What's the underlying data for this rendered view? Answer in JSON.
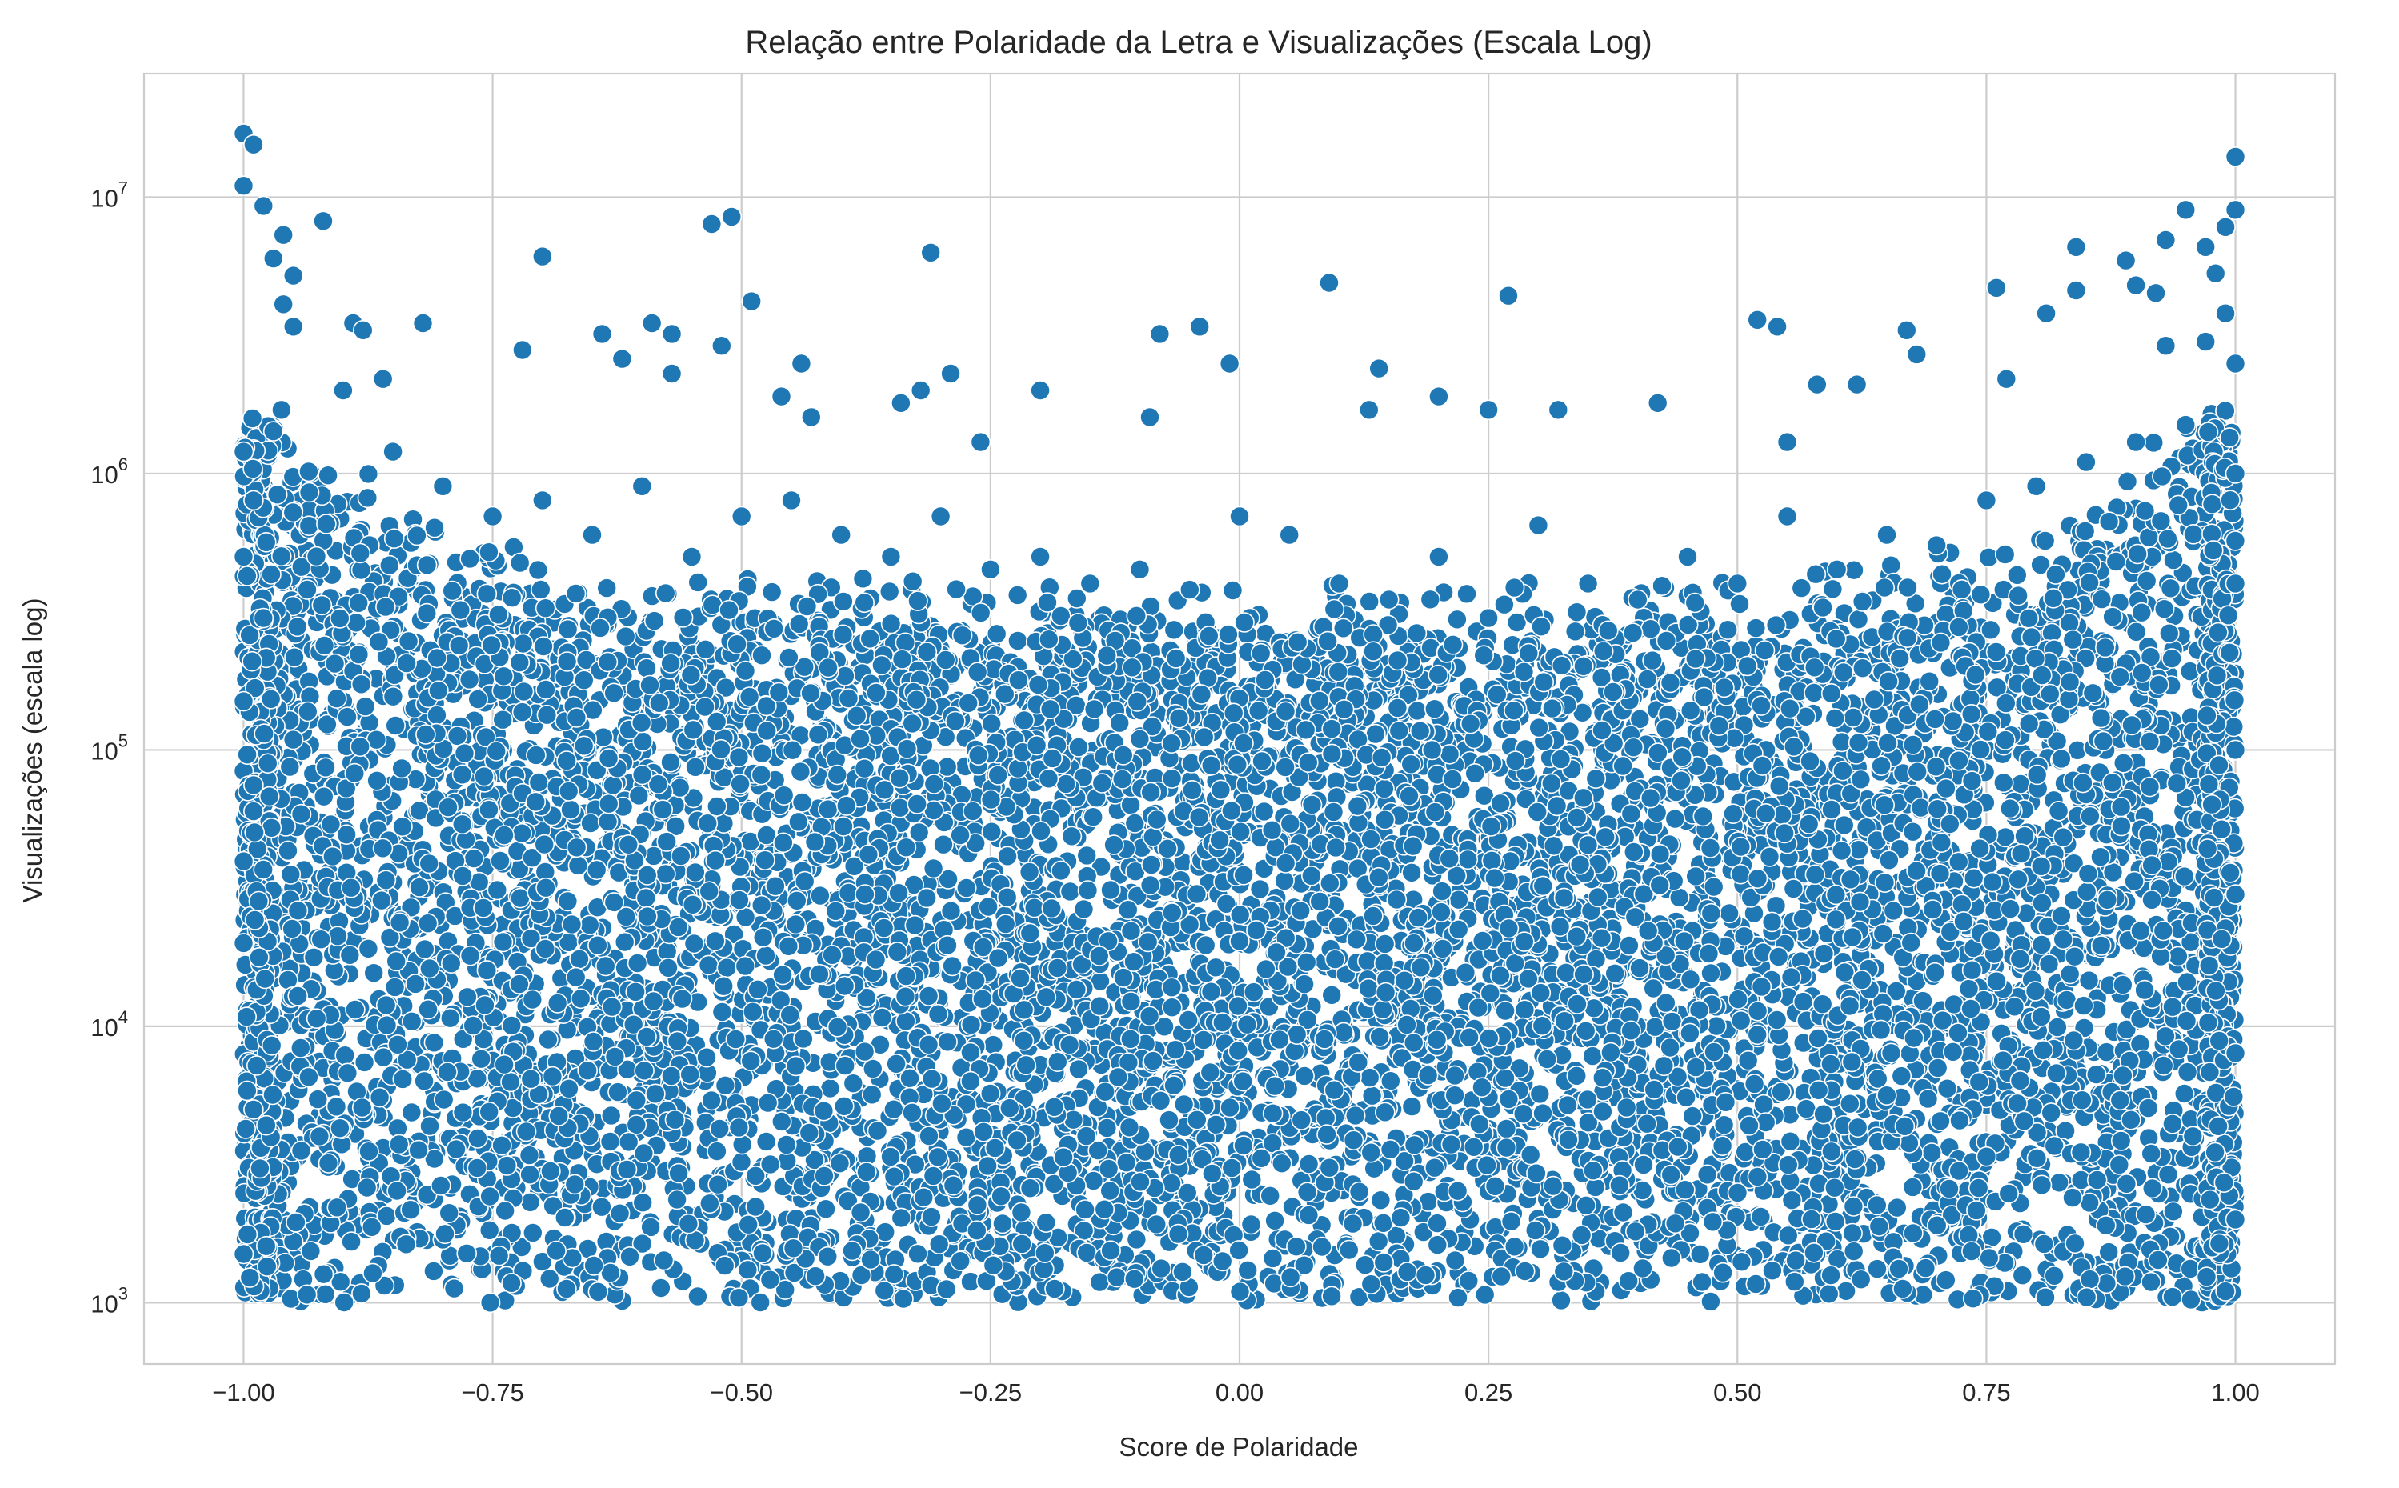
{
  "chart_data": {
    "type": "scatter",
    "title": "Relação entre Polaridade da Letra e Visualizações (Escala Log)",
    "xlabel": "Score de Polaridade",
    "ylabel": "Visualizações (escala log)",
    "xlim": [
      -1.1,
      1.1
    ],
    "ylim": [
      600,
      28000000
    ],
    "yscale": "log",
    "grid": true,
    "marker_color": "#1f77b4",
    "x_ticks": [
      {
        "value": -1.0,
        "label": "−1.00"
      },
      {
        "value": -0.75,
        "label": "−0.75"
      },
      {
        "value": -0.5,
        "label": "−0.50"
      },
      {
        "value": -0.25,
        "label": "−0.25"
      },
      {
        "value": 0.0,
        "label": "0.00"
      },
      {
        "value": 0.25,
        "label": "0.25"
      },
      {
        "value": 0.5,
        "label": "0.50"
      },
      {
        "value": 0.75,
        "label": "0.75"
      },
      {
        "value": 1.0,
        "label": "1.00"
      }
    ],
    "y_ticks": [
      {
        "value": 1000,
        "base": "10",
        "exp": "3"
      },
      {
        "value": 10000,
        "base": "10",
        "exp": "4"
      },
      {
        "value": 100000,
        "base": "10",
        "exp": "5"
      },
      {
        "value": 1000000,
        "base": "10",
        "exp": "6"
      },
      {
        "value": 10000000,
        "base": "10",
        "exp": "7"
      }
    ],
    "points": [
      {
        "x": -1.0,
        "y": 17000000
      },
      {
        "x": -0.99,
        "y": 15500000
      },
      {
        "x": -1.0,
        "y": 11000000
      },
      {
        "x": -0.98,
        "y": 9300000
      },
      {
        "x": -0.96,
        "y": 7300000
      },
      {
        "x": -0.97,
        "y": 6000000
      },
      {
        "x": -0.95,
        "y": 5200000
      },
      {
        "x": -0.96,
        "y": 4100000
      },
      {
        "x": -0.95,
        "y": 3400000
      },
      {
        "x": -0.92,
        "y": 8200000
      },
      {
        "x": -0.89,
        "y": 3500000
      },
      {
        "x": -0.88,
        "y": 3300000
      },
      {
        "x": -0.82,
        "y": 3500000
      },
      {
        "x": -0.86,
        "y": 2200000
      },
      {
        "x": -0.9,
        "y": 2000000
      },
      {
        "x": -0.7,
        "y": 6100000
      },
      {
        "x": -0.72,
        "y": 2800000
      },
      {
        "x": -0.64,
        "y": 3200000
      },
      {
        "x": -0.59,
        "y": 3500000
      },
      {
        "x": -0.57,
        "y": 3200000
      },
      {
        "x": -0.62,
        "y": 2600000
      },
      {
        "x": -0.57,
        "y": 2300000
      },
      {
        "x": -0.53,
        "y": 8000000
      },
      {
        "x": -0.51,
        "y": 8500000
      },
      {
        "x": -0.52,
        "y": 2900000
      },
      {
        "x": -0.49,
        "y": 4200000
      },
      {
        "x": -0.44,
        "y": 2500000
      },
      {
        "x": -0.46,
        "y": 1900000
      },
      {
        "x": -0.43,
        "y": 1600000
      },
      {
        "x": -0.34,
        "y": 1800000
      },
      {
        "x": -0.32,
        "y": 2000000
      },
      {
        "x": -0.31,
        "y": 6300000
      },
      {
        "x": -0.29,
        "y": 2300000
      },
      {
        "x": -0.2,
        "y": 2000000
      },
      {
        "x": -0.26,
        "y": 1300000
      },
      {
        "x": -0.08,
        "y": 3200000
      },
      {
        "x": -0.04,
        "y": 3400000
      },
      {
        "x": -0.01,
        "y": 2500000
      },
      {
        "x": -0.09,
        "y": 1600000
      },
      {
        "x": 0.09,
        "y": 4900000
      },
      {
        "x": 0.14,
        "y": 2400000
      },
      {
        "x": 0.13,
        "y": 1700000
      },
      {
        "x": 0.27,
        "y": 4400000
      },
      {
        "x": 0.2,
        "y": 1900000
      },
      {
        "x": 0.25,
        "y": 1700000
      },
      {
        "x": 0.32,
        "y": 1700000
      },
      {
        "x": 0.42,
        "y": 1800000
      },
      {
        "x": 0.52,
        "y": 3600000
      },
      {
        "x": 0.54,
        "y": 3400000
      },
      {
        "x": 0.55,
        "y": 1300000
      },
      {
        "x": 0.58,
        "y": 2100000
      },
      {
        "x": 0.62,
        "y": 2100000
      },
      {
        "x": 0.67,
        "y": 3300000
      },
      {
        "x": 0.68,
        "y": 2700000
      },
      {
        "x": 0.76,
        "y": 4700000
      },
      {
        "x": 0.77,
        "y": 2200000
      },
      {
        "x": 0.81,
        "y": 3800000
      },
      {
        "x": 0.84,
        "y": 6600000
      },
      {
        "x": 0.84,
        "y": 4600000
      },
      {
        "x": 0.89,
        "y": 5900000
      },
      {
        "x": 0.9,
        "y": 4800000
      },
      {
        "x": 0.92,
        "y": 4500000
      },
      {
        "x": 0.93,
        "y": 7000000
      },
      {
        "x": 0.95,
        "y": 9000000
      },
      {
        "x": 0.97,
        "y": 6600000
      },
      {
        "x": 0.98,
        "y": 5300000
      },
      {
        "x": 1.0,
        "y": 14000000
      },
      {
        "x": 1.0,
        "y": 9000000
      },
      {
        "x": 0.99,
        "y": 7800000
      },
      {
        "x": 0.99,
        "y": 3800000
      },
      {
        "x": 0.97,
        "y": 3000000
      },
      {
        "x": 0.93,
        "y": 2900000
      },
      {
        "x": -1.0,
        "y": 1200000
      },
      {
        "x": -0.99,
        "y": 800000
      },
      {
        "x": -1.0,
        "y": 500000
      },
      {
        "x": -0.98,
        "y": 300000
      },
      {
        "x": -1.0,
        "y": 150000
      },
      {
        "x": -0.99,
        "y": 60000
      },
      {
        "x": -1.0,
        "y": 20000
      },
      {
        "x": -0.99,
        "y": 5000
      },
      {
        "x": -1.0,
        "y": 1500
      },
      {
        "x": -0.85,
        "y": 1200000
      },
      {
        "x": -0.8,
        "y": 900000
      },
      {
        "x": -0.75,
        "y": 700000
      },
      {
        "x": -0.7,
        "y": 800000
      },
      {
        "x": -0.65,
        "y": 600000
      },
      {
        "x": -0.6,
        "y": 900000
      },
      {
        "x": -0.55,
        "y": 500000
      },
      {
        "x": -0.5,
        "y": 700000
      },
      {
        "x": -0.45,
        "y": 800000
      },
      {
        "x": -0.4,
        "y": 600000
      },
      {
        "x": -0.35,
        "y": 500000
      },
      {
        "x": -0.3,
        "y": 700000
      },
      {
        "x": -0.25,
        "y": 450000
      },
      {
        "x": -0.2,
        "y": 500000
      },
      {
        "x": -0.15,
        "y": 400000
      },
      {
        "x": -0.1,
        "y": 450000
      },
      {
        "x": -0.05,
        "y": 380000
      },
      {
        "x": 0.0,
        "y": 700000
      },
      {
        "x": 0.05,
        "y": 600000
      },
      {
        "x": 0.1,
        "y": 400000
      },
      {
        "x": 0.15,
        "y": 350000
      },
      {
        "x": 0.2,
        "y": 500000
      },
      {
        "x": 0.25,
        "y": 300000
      },
      {
        "x": 0.3,
        "y": 650000
      },
      {
        "x": 0.35,
        "y": 400000
      },
      {
        "x": 0.4,
        "y": 350000
      },
      {
        "x": 0.45,
        "y": 500000
      },
      {
        "x": 0.5,
        "y": 400000
      },
      {
        "x": 0.55,
        "y": 700000
      },
      {
        "x": 0.6,
        "y": 450000
      },
      {
        "x": 0.65,
        "y": 600000
      },
      {
        "x": 0.7,
        "y": 550000
      },
      {
        "x": 0.75,
        "y": 800000
      },
      {
        "x": 0.8,
        "y": 900000
      },
      {
        "x": 0.85,
        "y": 1100000
      },
      {
        "x": 0.9,
        "y": 1300000
      },
      {
        "x": 0.95,
        "y": 1500000
      },
      {
        "x": 1.0,
        "y": 2500000
      },
      {
        "x": 1.0,
        "y": 1000000
      },
      {
        "x": 1.0,
        "y": 400000
      },
      {
        "x": 1.0,
        "y": 100000
      },
      {
        "x": 1.0,
        "y": 30000
      },
      {
        "x": 1.0,
        "y": 8000
      },
      {
        "x": 1.0,
        "y": 2000
      },
      {
        "x": 0.99,
        "y": 1100
      }
    ],
    "background_cloud": {
      "note": "dense field of points filling x from -1 to 1 and y from 1e3 up to ~2e5 (center) / ~1e6 (edges)",
      "count": 9000
    }
  }
}
